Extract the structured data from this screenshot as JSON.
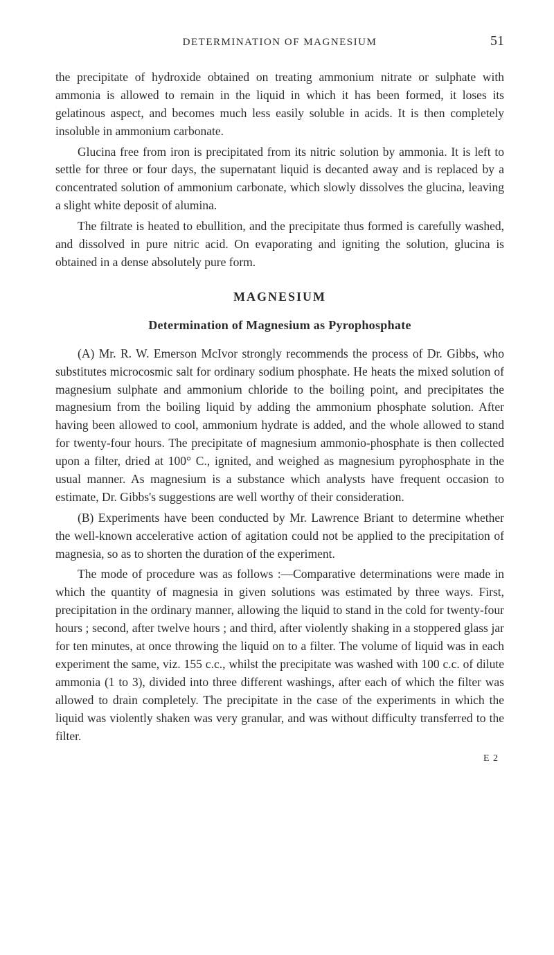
{
  "page": {
    "running_head": "DETERMINATION OF MAGNESIUM",
    "number": "51",
    "signature_mark": "E 2"
  },
  "body": {
    "p1": "the precipitate of hydroxide obtained on treating ammonium nitrate or sulphate with ammonia is allowed to remain in the liquid in which it has been formed, it loses its gelatinous aspect, and becomes much less easily soluble in acids. It is then completely insoluble in ammonium carbonate.",
    "p2": "Glucina free from iron is precipitated from its nitric solution by ammonia. It is left to settle for three or four days, the supernatant liquid is decanted away and is replaced by a concentrated solution of ammonium carbonate, which slowly dissolves the glucina, leaving a slight white deposit of alumina.",
    "p3": "The filtrate is heated to ebullition, and the precipitate thus formed is carefully washed, and dissolved in pure nitric acid. On evaporating and igniting the solution, glucina is obtained in a dense absolutely pure form."
  },
  "section": {
    "title": "MAGNESIUM",
    "subtitle": "Determination of Magnesium as Pyrophosphate",
    "pA_label": "(A)",
    "pA": " Mr. R. W. Emerson McIvor strongly recommends the process of Dr. Gibbs, who substitutes microcosmic salt for ordinary sodium phosphate. He heats the mixed solution of magnesium sulphate and ammonium chloride to the boiling point, and precipitates the magnesium from the boiling liquid by adding the ammonium phosphate solution. After having been allowed to cool, ammonium hydrate is added, and the whole allowed to stand for twenty-four hours. The precipitate of magnesium ammonio-phosphate is then collected upon a filter, dried at 100° C., ignited, and weighed as magnesium pyrophosphate in the usual manner. As magnesium is a substance which analysts have frequent occasion to estimate, Dr. Gibbs's suggestions are well worthy of their consideration.",
    "pB_label": "(B)",
    "pB": " Experiments have been conducted by Mr. Lawrence Briant to determine whether the well-known accelerative action of agitation could not be applied to the precipitation of magnesia, so as to shorten the duration of the experiment.",
    "pC": "The mode of procedure was as follows :—Comparative determinations were made in which the quantity of magnesia in given solutions was estimated by three ways. First, precipitation in the ordinary manner, allowing the liquid to stand in the cold for twenty-four hours ; second, after twelve hours ; and third, after violently shaking in a stoppered glass jar for ten minutes, at once throwing the liquid on to a filter. The volume of liquid was in each experiment the same, viz. 155 c.c., whilst the precipitate was washed with 100 c.c. of dilute ammonia (1 to 3), divided into three different washings, after each of which the filter was allowed to drain completely. The precipitate in the case of the experiments in which the liquid was violently shaken was very granular, and was without difficulty transferred to the filter."
  }
}
